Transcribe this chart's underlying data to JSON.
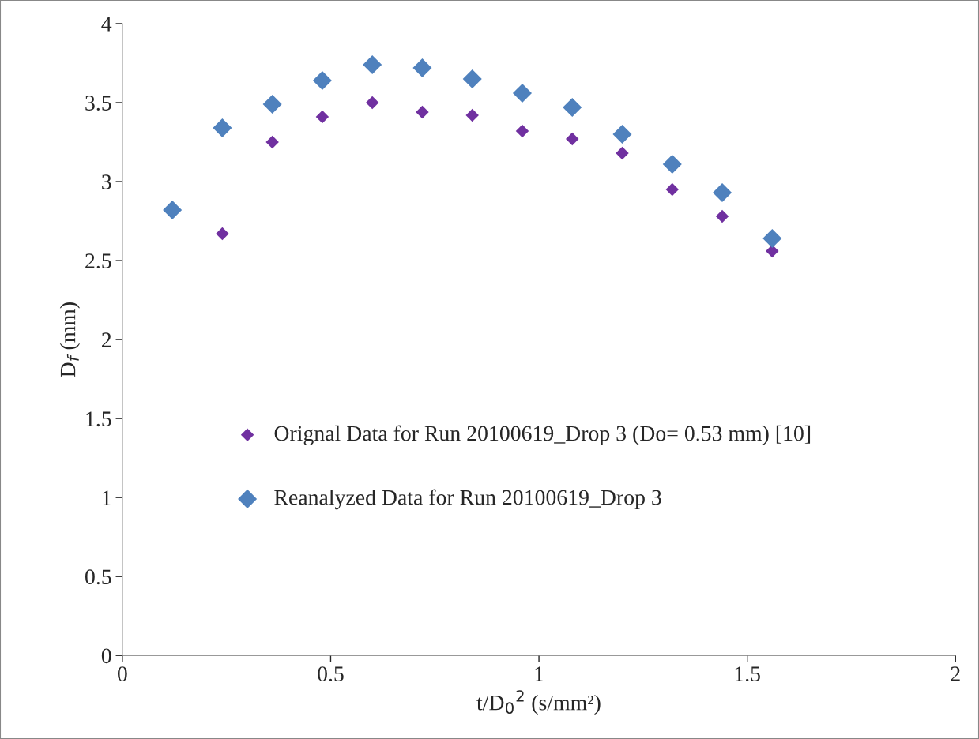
{
  "chart_data": {
    "type": "scatter",
    "xlabel": "t/D$_{0}$$^{2}$ (s/mm²)",
    "ylabel": "D$_{f}$ (mm)",
    "xlim": [
      0,
      2
    ],
    "xticks": [
      0,
      0.5,
      1,
      1.5,
      2
    ],
    "ylim": [
      0,
      4
    ],
    "yticks": [
      0,
      0.5,
      1,
      1.5,
      2,
      2.5,
      3,
      3.5,
      4
    ],
    "grid": false,
    "legend": "bottom left",
    "marker": "diamond",
    "series": [
      {
        "name": "Orignal Data for Run 20100619_Drop 3 (Do= 0.53 mm) [10]",
        "color": "#7030a0",
        "x": [
          0.24,
          0.36,
          0.48,
          0.6,
          0.72,
          0.84,
          0.96,
          1.08,
          1.2,
          1.32,
          1.44,
          1.56
        ],
        "values": [
          2.67,
          3.25,
          3.41,
          3.5,
          3.44,
          3.42,
          3.32,
          3.27,
          3.18,
          2.95,
          2.78,
          2.56
        ]
      },
      {
        "name": "Reanalyzed Data for Run 20100619_Drop 3",
        "color": "#4f81bd",
        "x": [
          0.12,
          0.24,
          0.36,
          0.48,
          0.6,
          0.72,
          0.84,
          0.96,
          1.08,
          1.2,
          1.32,
          1.44,
          1.56
        ],
        "values": [
          2.82,
          3.34,
          3.49,
          3.64,
          3.74,
          3.72,
          3.65,
          3.56,
          3.47,
          3.3,
          3.11,
          2.93,
          2.64
        ]
      }
    ]
  }
}
